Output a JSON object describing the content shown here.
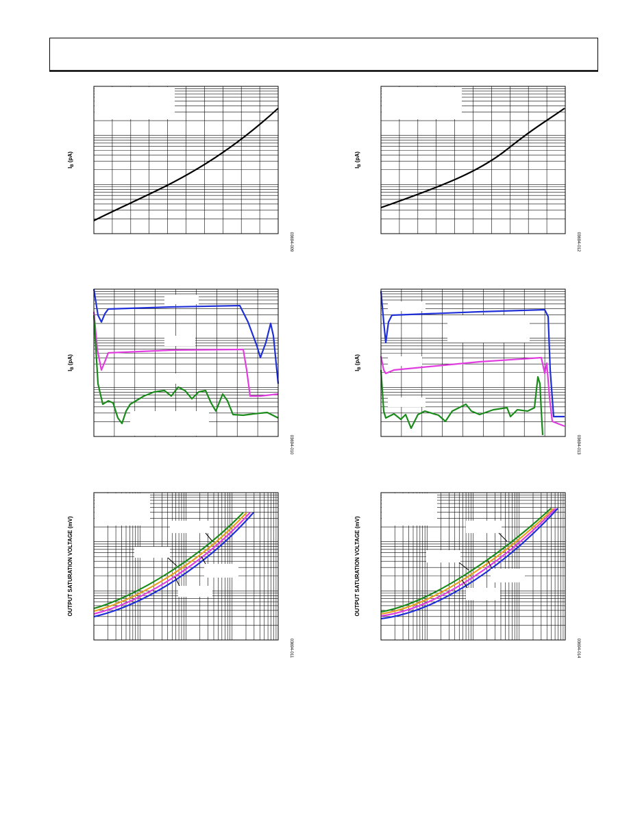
{
  "figures": [
    {
      "ylabel": {
        "text": "I",
        "subscript": "B",
        "unit": "(pA)"
      },
      "figure_id": "03694-009"
    },
    {
      "ylabel": {
        "text": "I",
        "subscript": "B",
        "unit": "(pA)"
      },
      "figure_id": "03694-012"
    },
    {
      "ylabel": {
        "text": "I",
        "subscript": "B",
        "unit": "(pA)"
      },
      "figure_id": "03694-010"
    },
    {
      "ylabel": {
        "text": "I",
        "subscript": "B",
        "unit": "(pA)"
      },
      "figure_id": "03694-013"
    },
    {
      "ylabel": {
        "text": "OUTPUT SATURATION VOLTAGE (mV)"
      },
      "figure_id": "03694-011"
    },
    {
      "ylabel": {
        "text": "OUTPUT SATURATION VOLTAGE (mV)"
      },
      "figure_id": "03694-014"
    }
  ]
}
